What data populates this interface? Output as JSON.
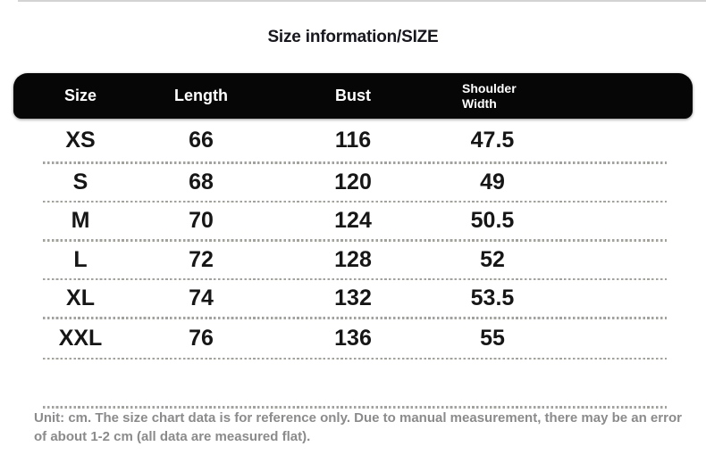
{
  "title": "Size information/SIZE",
  "table": {
    "columns": [
      "Size",
      "Length",
      "Bust",
      "Shoulder Width"
    ],
    "rows": [
      [
        "XS",
        "66",
        "116",
        "47.5"
      ],
      [
        "S",
        "68",
        "120",
        "49"
      ],
      [
        "M",
        "70",
        "124",
        "50.5"
      ],
      [
        "L",
        "72",
        "128",
        "52"
      ],
      [
        "XL",
        "74",
        "132",
        "53.5"
      ],
      [
        "XXL",
        "76",
        "136",
        "55"
      ]
    ],
    "unit_note": "Unit: cm. The size chart data is for reference only. Due to manual measurement, there may be an error of about 1-2 cm (all data are measured flat)."
  },
  "colors": {
    "header_bg": "#060606",
    "header_text": "#ffffff",
    "body_text": "#161616",
    "note_text": "#8b8b8b",
    "divider": "#a3a39c",
    "top_line": "#d3d3d3",
    "page_bg": "#ffffff"
  }
}
